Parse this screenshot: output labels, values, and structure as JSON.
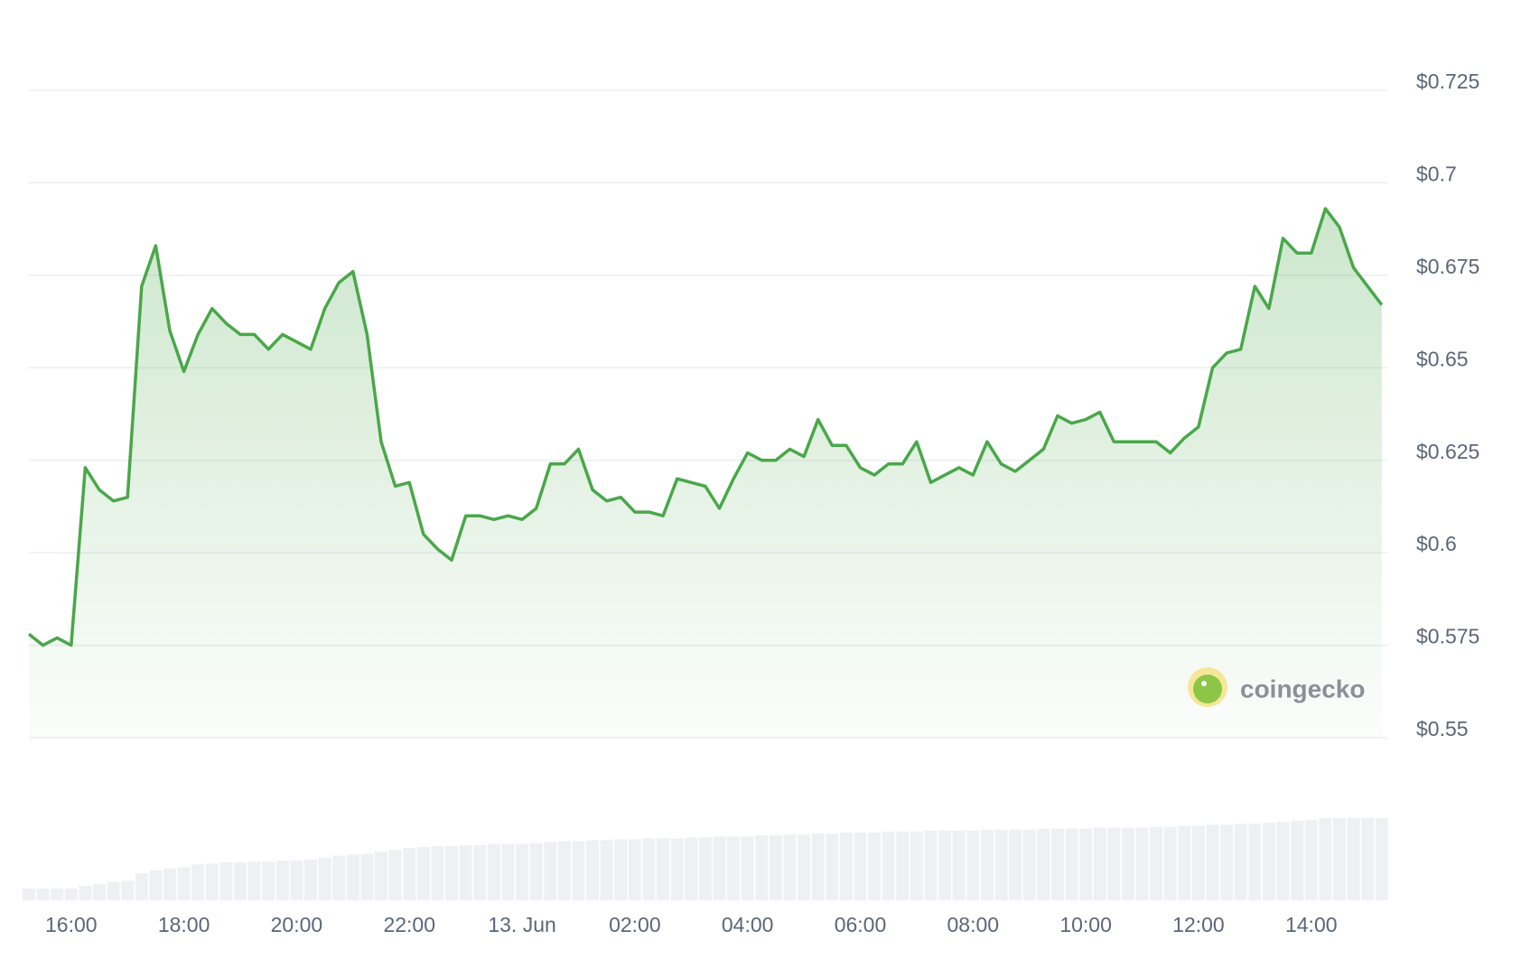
{
  "chart_data": {
    "type": "line",
    "color": "#4aa74a",
    "volume_color": "#eff0f3",
    "grid": true,
    "watermark": "coingecko",
    "xlim": [
      15.25,
      39.35
    ],
    "xticks": [
      {
        "value": 16,
        "label": "16:00"
      },
      {
        "value": 18,
        "label": "18:00"
      },
      {
        "value": 20,
        "label": "20:00"
      },
      {
        "value": 22,
        "label": "22:00"
      },
      {
        "value": 24,
        "label": "13. Jun"
      },
      {
        "value": 26,
        "label": "02:00"
      },
      {
        "value": 28,
        "label": "04:00"
      },
      {
        "value": 30,
        "label": "06:00"
      },
      {
        "value": 32,
        "label": "08:00"
      },
      {
        "value": 34,
        "label": "10:00"
      },
      {
        "value": 36,
        "label": "12:00"
      },
      {
        "value": 38,
        "label": "14:00"
      }
    ],
    "ylim": [
      0.55,
      0.735
    ],
    "yticks": [
      {
        "value": 0.55,
        "label": "$0.55"
      },
      {
        "value": 0.575,
        "label": "$0.575"
      },
      {
        "value": 0.6,
        "label": "$0.6"
      },
      {
        "value": 0.625,
        "label": "$0.625"
      },
      {
        "value": 0.65,
        "label": "$0.65"
      },
      {
        "value": 0.675,
        "label": "$0.675"
      },
      {
        "value": 0.7,
        "label": "$0.7"
      },
      {
        "value": 0.725,
        "label": "$0.725"
      }
    ],
    "x": [
      15.25,
      15.5,
      15.75,
      16,
      16.25,
      16.5,
      16.75,
      17,
      17.25,
      17.5,
      17.75,
      18,
      18.25,
      18.5,
      18.75,
      19,
      19.25,
      19.5,
      19.75,
      20,
      20.25,
      20.5,
      20.75,
      21,
      21.25,
      21.5,
      21.75,
      22,
      22.25,
      22.5,
      22.75,
      23,
      23.25,
      23.5,
      23.75,
      24,
      24.25,
      24.5,
      24.75,
      25,
      25.25,
      25.5,
      25.75,
      26,
      26.25,
      26.5,
      26.75,
      27,
      27.25,
      27.5,
      27.75,
      28,
      28.25,
      28.5,
      28.75,
      29,
      29.25,
      29.5,
      29.75,
      30,
      30.25,
      30.5,
      30.75,
      31,
      31.25,
      31.5,
      31.75,
      32,
      32.25,
      32.5,
      32.75,
      33,
      33.25,
      33.5,
      33.75,
      34,
      34.25,
      34.5,
      34.75,
      35,
      35.25,
      35.5,
      35.75,
      36,
      36.25,
      36.5,
      36.75,
      37,
      37.25,
      37.5,
      37.75,
      38,
      38.25,
      38.5,
      38.75,
      39,
      39.25
    ],
    "values": [
      0.578,
      0.575,
      0.577,
      0.575,
      0.623,
      0.617,
      0.614,
      0.615,
      0.672,
      0.683,
      0.66,
      0.649,
      0.659,
      0.666,
      0.662,
      0.659,
      0.659,
      0.655,
      0.659,
      0.657,
      0.655,
      0.666,
      0.673,
      0.676,
      0.659,
      0.63,
      0.618,
      0.619,
      0.605,
      0.601,
      0.598,
      0.61,
      0.61,
      0.609,
      0.61,
      0.609,
      0.612,
      0.624,
      0.624,
      0.628,
      0.617,
      0.614,
      0.615,
      0.611,
      0.611,
      0.61,
      0.62,
      0.619,
      0.618,
      0.612,
      0.62,
      0.627,
      0.625,
      0.625,
      0.628,
      0.626,
      0.636,
      0.629,
      0.629,
      0.623,
      0.621,
      0.624,
      0.624,
      0.63,
      0.619,
      0.621,
      0.623,
      0.621,
      0.63,
      0.624,
      0.622,
      0.625,
      0.628,
      0.637,
      0.635,
      0.636,
      0.638,
      0.63,
      0.63,
      0.63,
      0.63,
      0.627,
      0.631,
      0.634,
      0.65,
      0.654,
      0.655,
      0.672,
      0.666,
      0.685,
      0.681,
      0.681,
      0.693,
      0.688,
      0.677,
      0.672,
      0.667
    ],
    "volume": [
      12,
      12,
      12,
      12,
      15,
      17,
      19,
      20,
      28,
      31,
      33,
      34,
      37,
      38,
      39,
      39,
      40,
      40,
      41,
      41,
      42,
      44,
      46,
      47,
      48,
      50,
      52,
      54,
      55,
      56,
      56,
      57,
      57,
      58,
      58,
      58,
      59,
      60,
      61,
      61,
      62,
      62,
      63,
      63,
      64,
      64,
      64,
      65,
      65,
      66,
      66,
      66,
      67,
      67,
      68,
      68,
      69,
      69,
      70,
      70,
      70,
      71,
      71,
      71,
      72,
      72,
      72,
      72,
      73,
      73,
      73,
      73,
      74,
      74,
      74,
      74,
      75,
      75,
      75,
      75,
      76,
      76,
      77,
      77,
      78,
      78,
      79,
      79,
      80,
      81,
      82,
      83,
      85,
      85,
      85,
      85,
      85
    ]
  }
}
